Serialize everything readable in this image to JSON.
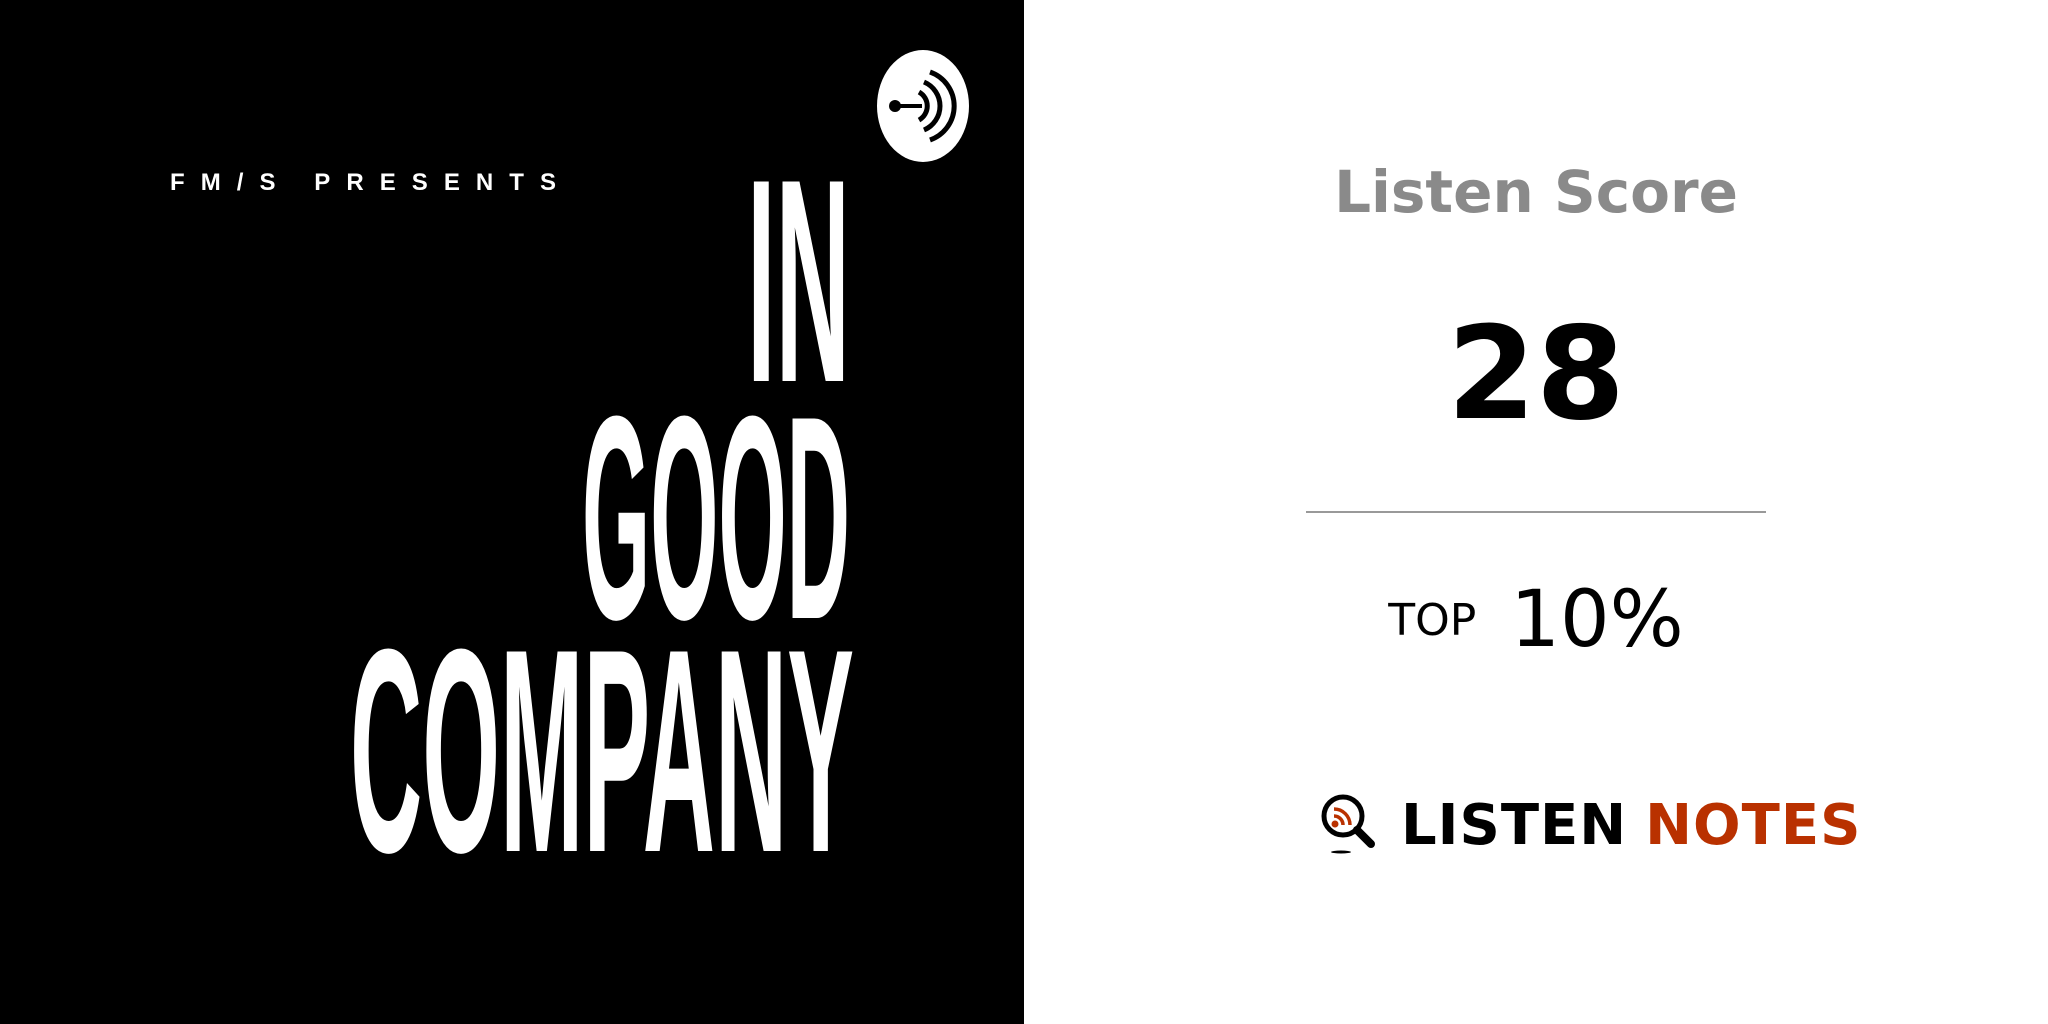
{
  "cover": {
    "presenter": "FM/S PRESENTS",
    "title_lines": [
      "IN",
      "GOOD",
      "COMPANY"
    ],
    "badge_icon": "anchor-podcast-icon",
    "background": "#000000",
    "foreground": "#ffffff"
  },
  "score_panel": {
    "title": "Listen Score",
    "score": "28",
    "top_label": "TOP",
    "top_percent": "10%"
  },
  "brand": {
    "icon": "magnifier-rss-icon",
    "word1": "LISTEN",
    "word2": "NOTES",
    "accent_color": "#b93100"
  }
}
